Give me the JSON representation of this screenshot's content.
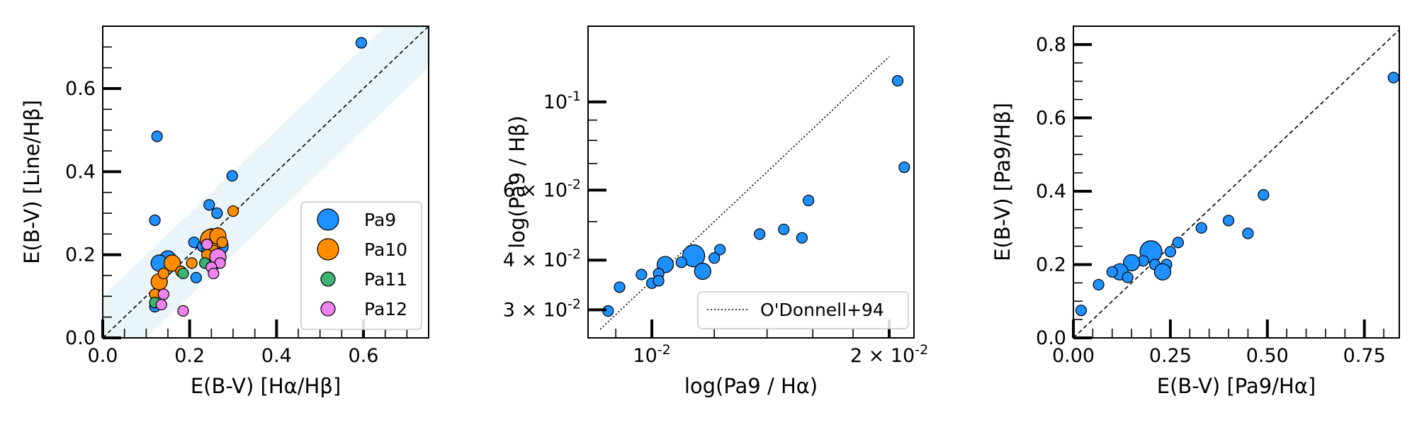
{
  "chart_data": [
    {
      "type": "scatter",
      "xlabel": "E(B-V) [Hα/Hβ]",
      "ylabel": "E(B-V) [Line/Hβ]",
      "xlim": [
        0.0,
        0.75
      ],
      "ylim": [
        0.0,
        0.75
      ],
      "x_ticks": [
        0.0,
        0.2,
        0.4,
        0.6
      ],
      "y_ticks": [
        0.0,
        0.2,
        0.4,
        0.6
      ],
      "x_tick_labels": [
        "0.0",
        "0.2",
        "0.4",
        "0.6"
      ],
      "y_tick_labels": [
        "0.0",
        "0.2",
        "0.4",
        "0.6"
      ],
      "reference_line": "y = x (dashed)",
      "band": "shaded band around y = x (light blue)",
      "legend_position": "lower-right",
      "series": [
        {
          "name": "Pa9",
          "color": "#1e90ff",
          "points": [
            [
              0.595,
              0.71,
              1
            ],
            [
              0.125,
              0.485,
              1
            ],
            [
              0.298,
              0.39,
              1
            ],
            [
              0.12,
              0.283,
              1
            ],
            [
              0.245,
              0.32,
              1
            ],
            [
              0.263,
              0.3,
              1
            ],
            [
              0.21,
              0.23,
              1
            ],
            [
              0.23,
              0.22,
              1
            ],
            [
              0.245,
              0.24,
              2
            ],
            [
              0.255,
              0.21,
              2
            ],
            [
              0.26,
              0.2,
              2
            ],
            [
              0.27,
              0.22,
              2
            ],
            [
              0.24,
              0.21,
              1
            ],
            [
              0.15,
              0.19,
              2
            ],
            [
              0.13,
              0.18,
              2
            ],
            [
              0.25,
              0.25,
              1
            ],
            [
              0.215,
              0.145,
              1
            ],
            [
              0.12,
              0.075,
              1
            ]
          ]
        },
        {
          "name": "Pa10",
          "color": "#ff8c00",
          "points": [
            [
              0.3,
              0.305,
              1
            ],
            [
              0.16,
              0.18,
              2
            ],
            [
              0.13,
              0.135,
              2
            ],
            [
              0.14,
              0.155,
              1
            ],
            [
              0.12,
              0.105,
              1
            ],
            [
              0.18,
              0.16,
              1
            ],
            [
              0.205,
              0.18,
              1
            ],
            [
              0.25,
              0.235,
              3
            ],
            [
              0.265,
              0.245,
              2
            ],
            [
              0.255,
              0.21,
              1
            ],
            [
              0.24,
              0.2,
              1
            ],
            [
              0.275,
              0.23,
              1
            ]
          ]
        },
        {
          "name": "Pa11",
          "color": "#3cb371",
          "points": [
            [
              0.12,
              0.085,
              1
            ],
            [
              0.185,
              0.155,
              1
            ],
            [
              0.235,
              0.18,
              1
            ],
            [
              0.265,
              0.18,
              1
            ]
          ]
        },
        {
          "name": "Pa12",
          "color": "#ee82ee",
          "points": [
            [
              0.14,
              0.105,
              1
            ],
            [
              0.135,
              0.08,
              1
            ],
            [
              0.185,
              0.065,
              1
            ],
            [
              0.24,
              0.225,
              1
            ],
            [
              0.265,
              0.195,
              2
            ],
            [
              0.27,
              0.18,
              1
            ],
            [
              0.25,
              0.17,
              1
            ],
            [
              0.255,
              0.155,
              1
            ]
          ]
        }
      ]
    },
    {
      "type": "scatter",
      "xscale": "log",
      "yscale": "log",
      "xlabel": "log(Pa9 / Hα)",
      "ylabel": "log(Pa9 / Hβ)",
      "xlim": [
        0.0083,
        0.0215
      ],
      "ylim": [
        0.0255,
        0.155
      ],
      "x_ticks": [
        0.01,
        0.02
      ],
      "x_tick_labels": [
        "10^{-2}",
        "2 × 10^{-2}"
      ],
      "y_ticks": [
        0.03,
        0.04,
        0.06,
        0.1
      ],
      "y_tick_labels": [
        "3 × 10^{-2}",
        "4 × 10^{-2}",
        "6 × 10^{-2}",
        "10^{-1}"
      ],
      "legend_position": "lower-right",
      "reference_line": {
        "name": "O'Donnell+94",
        "style": "dotted",
        "x": [
          0.0086,
          0.02
        ],
        "y": [
          0.0268,
          0.13
        ]
      },
      "series": [
        {
          "name": "Pa9",
          "color": "#1e90ff",
          "points": [
            [
              0.0205,
              0.113,
              1
            ],
            [
              0.0209,
              0.0685,
              1
            ],
            [
              0.0158,
              0.0565,
              1
            ],
            [
              0.0147,
              0.0478,
              1
            ],
            [
              0.0155,
              0.0455,
              1
            ],
            [
              0.0137,
              0.0465,
              1
            ],
            [
              0.0122,
              0.0425,
              1
            ],
            [
              0.012,
              0.0405,
              1
            ],
            [
              0.0113,
              0.041,
              3
            ],
            [
              0.0109,
              0.0395,
              1
            ],
            [
              0.0104,
              0.039,
              2
            ],
            [
              0.0102,
              0.037,
              1
            ],
            [
              0.0116,
              0.0375,
              2
            ],
            [
              0.01,
              0.035,
              1
            ],
            [
              0.0097,
              0.0368,
              1
            ],
            [
              0.0091,
              0.0342,
              1
            ],
            [
              0.0088,
              0.0298,
              1
            ],
            [
              0.0102,
              0.0355,
              1
            ]
          ]
        }
      ]
    },
    {
      "type": "scatter",
      "xlabel": "E(B-V) [Pa9/Hα]",
      "ylabel": "E(B-V) [Pa9/Hβ]",
      "xlim": [
        0.0,
        0.84
      ],
      "ylim": [
        0.0,
        0.85
      ],
      "x_ticks": [
        0.0,
        0.25,
        0.5,
        0.75
      ],
      "x_tick_labels": [
        "0.00",
        "0.25",
        "0.50",
        "0.75"
      ],
      "y_ticks": [
        0.0,
        0.2,
        0.4,
        0.6,
        0.8
      ],
      "y_tick_labels": [
        "0.0",
        "0.2",
        "0.4",
        "0.6",
        "0.8"
      ],
      "reference_line": "y = x (dashed)",
      "series": [
        {
          "name": "Pa9",
          "color": "#1e90ff",
          "points": [
            [
              0.825,
              0.71,
              1
            ],
            [
              0.49,
              0.39,
              1
            ],
            [
              0.4,
              0.32,
              1
            ],
            [
              0.33,
              0.3,
              1
            ],
            [
              0.45,
              0.285,
              1
            ],
            [
              0.27,
              0.26,
              1
            ],
            [
              0.25,
              0.235,
              1
            ],
            [
              0.2,
              0.235,
              3
            ],
            [
              0.24,
              0.2,
              1
            ],
            [
              0.21,
              0.2,
              1
            ],
            [
              0.18,
              0.21,
              1
            ],
            [
              0.15,
              0.205,
              2
            ],
            [
              0.12,
              0.18,
              2
            ],
            [
              0.1,
              0.18,
              1
            ],
            [
              0.14,
              0.165,
              1
            ],
            [
              0.23,
              0.18,
              2
            ],
            [
              0.065,
              0.145,
              1
            ],
            [
              0.02,
              0.075,
              1
            ]
          ]
        }
      ]
    }
  ]
}
